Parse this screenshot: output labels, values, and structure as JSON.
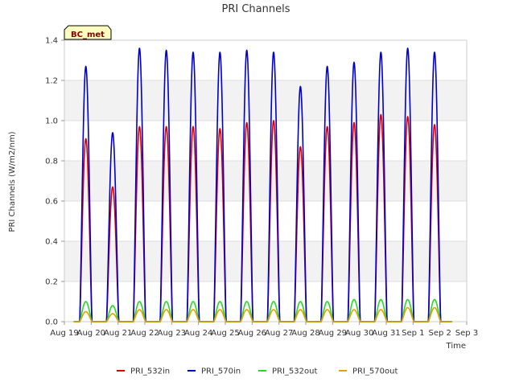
{
  "chart_data": {
    "type": "line",
    "title": "PRI Channels",
    "xlabel": "Time",
    "ylabel": "PRI Channels (W/m2/nm)",
    "badge": "BC_met",
    "ylim": [
      0,
      1.4
    ],
    "yticks": [
      0.0,
      0.2,
      0.4,
      0.6,
      0.8,
      1.0,
      1.2,
      1.4
    ],
    "ytick_labels": [
      "0.0",
      "0.2",
      "0.4",
      "0.6",
      "0.8",
      "1.0",
      "1.2",
      "1.4"
    ],
    "xlim": [
      0,
      15
    ],
    "xticks": [
      0,
      1,
      2,
      3,
      4,
      5,
      6,
      7,
      8,
      9,
      10,
      11,
      12,
      13,
      14,
      15
    ],
    "xtick_labels": [
      "Aug 19",
      "Aug 20",
      "Aug 21",
      "Aug 22",
      "Aug 23",
      "Aug 24",
      "Aug 25",
      "Aug 26",
      "Aug 27",
      "Aug 28",
      "Aug 29",
      "Aug 30",
      "Aug 31",
      "Sep 1",
      "Sep 2",
      "Sep 3"
    ],
    "data_start": 0.35,
    "data_end": 14.45,
    "peak_days": [
      0.8,
      1.8,
      2.8,
      3.8,
      4.8,
      5.8,
      6.8,
      7.8,
      8.8,
      9.8,
      10.8,
      11.8,
      12.8,
      13.8
    ],
    "series": [
      {
        "name": "PRI_532in",
        "color": "#dd0000",
        "peaks": [
          0.91,
          0.67,
          0.97,
          0.97,
          0.97,
          0.96,
          0.99,
          1.0,
          0.87,
          0.97,
          0.99,
          1.03,
          1.02,
          0.98
        ]
      },
      {
        "name": "PRI_570in",
        "color": "#0000cc",
        "peaks": [
          1.27,
          0.94,
          1.36,
          1.35,
          1.34,
          1.34,
          1.35,
          1.34,
          1.17,
          1.27,
          1.29,
          1.34,
          1.36,
          1.34
        ]
      },
      {
        "name": "PRI_532out",
        "color": "#22dd22",
        "peaks": [
          0.1,
          0.08,
          0.1,
          0.1,
          0.1,
          0.1,
          0.1,
          0.1,
          0.1,
          0.1,
          0.11,
          0.11,
          0.11,
          0.11
        ]
      },
      {
        "name": "PRI_570out",
        "color": "#e6a000",
        "peaks": [
          0.05,
          0.04,
          0.06,
          0.06,
          0.06,
          0.06,
          0.06,
          0.06,
          0.06,
          0.06,
          0.06,
          0.06,
          0.07,
          0.07
        ]
      }
    ]
  }
}
